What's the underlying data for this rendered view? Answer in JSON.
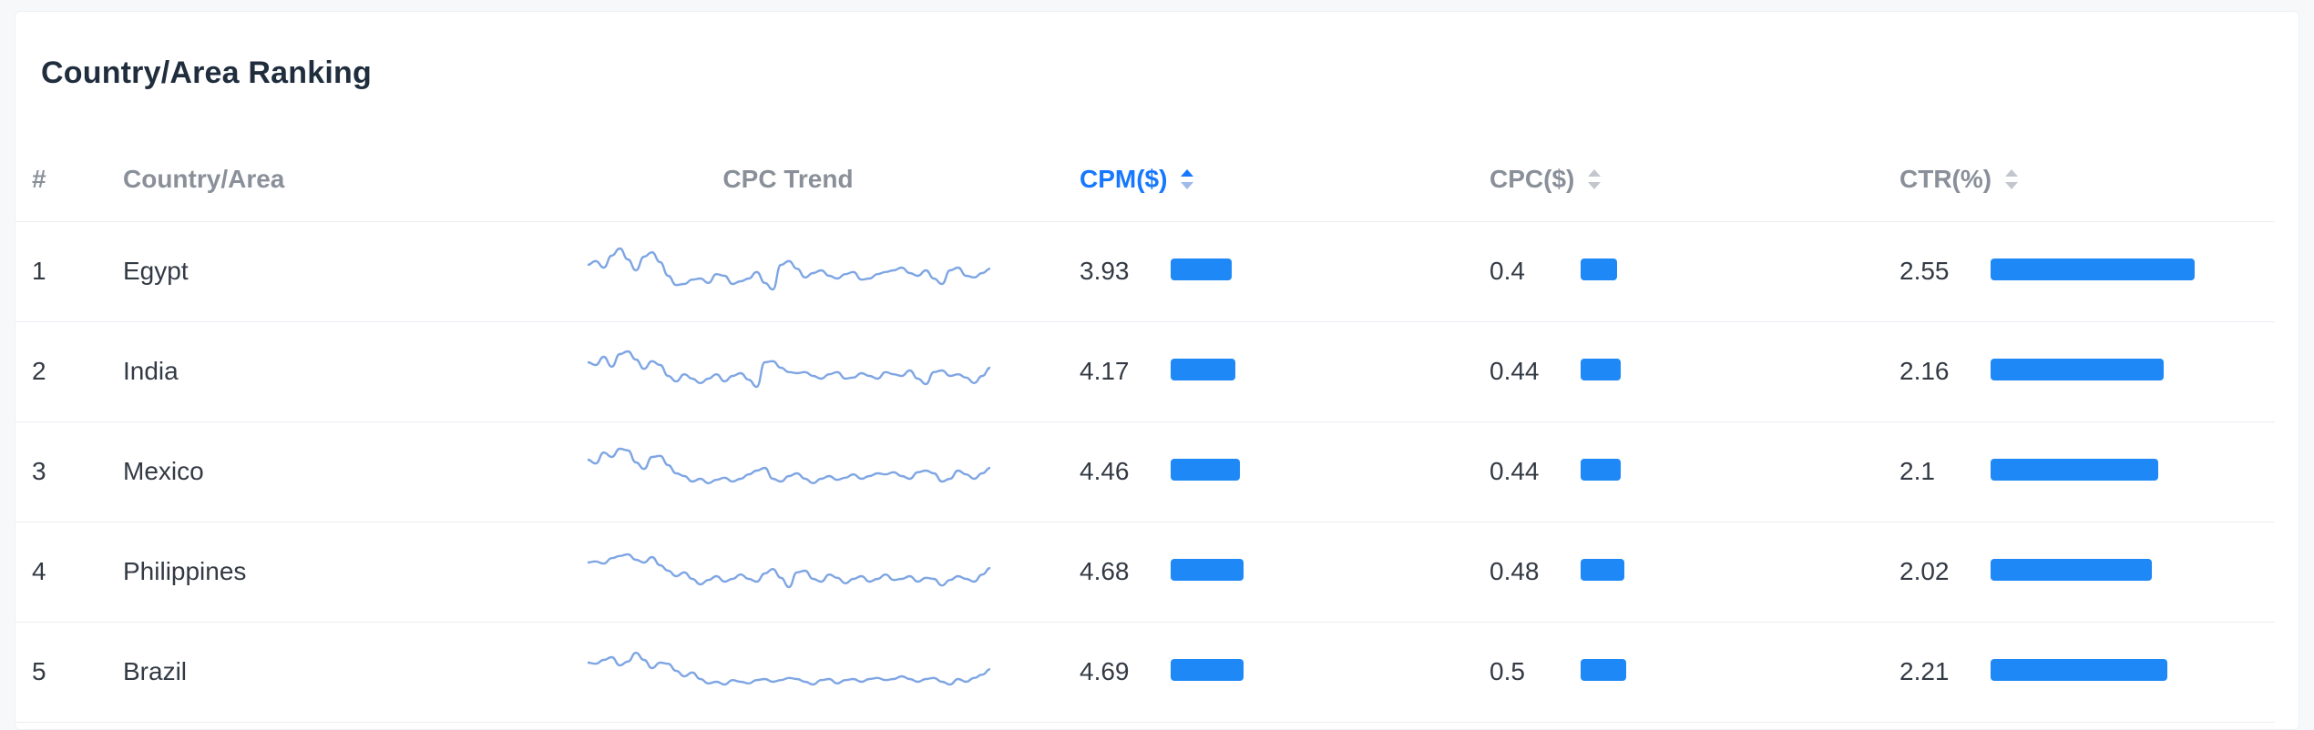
{
  "title": "Country/Area Ranking",
  "columns": {
    "rank": "#",
    "country": "Country/Area",
    "trend": "CPC Trend",
    "cpm": "CPM($)",
    "cpc": "CPC($)",
    "ctr": "CTR(%)"
  },
  "sort": {
    "active_column": "cpm",
    "direction": "asc"
  },
  "colors": {
    "accent": "#1677ff",
    "bar": "#1e88f7",
    "sparkline": "#7fa6e3"
  },
  "bar_scale_max": {
    "cpm": 4.69,
    "cpc": 0.5,
    "ctr": 2.55
  },
  "rows": [
    {
      "rank": "1",
      "country": "Egypt",
      "cpm": "3.93",
      "cpc": "0.4",
      "ctr": "2.55",
      "trend": [
        0.55,
        0.62,
        0.5,
        0.72,
        0.85,
        0.65,
        0.45,
        0.7,
        0.78,
        0.6,
        0.35,
        0.18,
        0.2,
        0.28,
        0.3,
        0.22,
        0.38,
        0.35,
        0.2,
        0.25,
        0.3,
        0.42,
        0.22,
        0.1,
        0.55,
        0.62,
        0.48,
        0.32,
        0.4,
        0.45,
        0.35,
        0.3,
        0.38,
        0.42,
        0.28,
        0.3,
        0.38,
        0.42,
        0.45,
        0.5,
        0.4,
        0.35,
        0.45,
        0.3,
        0.2,
        0.45,
        0.5,
        0.35,
        0.32,
        0.4,
        0.48
      ]
    },
    {
      "rank": "2",
      "country": "India",
      "cpm": "4.17",
      "cpc": "0.44",
      "ctr": "2.16",
      "trend": [
        0.6,
        0.55,
        0.7,
        0.52,
        0.75,
        0.8,
        0.65,
        0.48,
        0.62,
        0.55,
        0.35,
        0.25,
        0.38,
        0.3,
        0.22,
        0.3,
        0.38,
        0.25,
        0.35,
        0.4,
        0.28,
        0.15,
        0.6,
        0.62,
        0.5,
        0.42,
        0.4,
        0.42,
        0.35,
        0.3,
        0.38,
        0.42,
        0.3,
        0.32,
        0.4,
        0.35,
        0.3,
        0.42,
        0.38,
        0.35,
        0.45,
        0.3,
        0.2,
        0.42,
        0.45,
        0.35,
        0.38,
        0.32,
        0.22,
        0.35,
        0.5
      ]
    },
    {
      "rank": "3",
      "country": "Mexico",
      "cpm": "4.46",
      "cpc": "0.44",
      "ctr": "2.1",
      "trend": [
        0.65,
        0.58,
        0.78,
        0.7,
        0.85,
        0.82,
        0.6,
        0.48,
        0.7,
        0.72,
        0.55,
        0.4,
        0.35,
        0.25,
        0.3,
        0.22,
        0.28,
        0.32,
        0.25,
        0.3,
        0.38,
        0.45,
        0.5,
        0.3,
        0.25,
        0.35,
        0.4,
        0.3,
        0.22,
        0.3,
        0.35,
        0.28,
        0.32,
        0.38,
        0.3,
        0.35,
        0.4,
        0.38,
        0.42,
        0.35,
        0.3,
        0.42,
        0.45,
        0.4,
        0.25,
        0.3,
        0.45,
        0.38,
        0.3,
        0.4,
        0.5
      ]
    },
    {
      "rank": "4",
      "country": "Philippines",
      "cpm": "4.68",
      "cpc": "0.48",
      "ctr": "2.02",
      "trend": [
        0.6,
        0.62,
        0.58,
        0.68,
        0.72,
        0.75,
        0.65,
        0.6,
        0.7,
        0.55,
        0.45,
        0.35,
        0.42,
        0.3,
        0.2,
        0.28,
        0.35,
        0.25,
        0.3,
        0.38,
        0.3,
        0.25,
        0.4,
        0.48,
        0.32,
        0.15,
        0.42,
        0.45,
        0.3,
        0.25,
        0.38,
        0.32,
        0.22,
        0.3,
        0.35,
        0.25,
        0.3,
        0.38,
        0.28,
        0.3,
        0.35,
        0.25,
        0.32,
        0.3,
        0.18,
        0.28,
        0.35,
        0.3,
        0.25,
        0.38,
        0.5
      ]
    },
    {
      "rank": "5",
      "country": "Brazil",
      "cpm": "4.69",
      "cpc": "0.5",
      "ctr": "2.21",
      "trend": [
        0.6,
        0.58,
        0.65,
        0.7,
        0.55,
        0.62,
        0.78,
        0.65,
        0.5,
        0.6,
        0.58,
        0.45,
        0.35,
        0.42,
        0.3,
        0.22,
        0.25,
        0.2,
        0.28,
        0.25,
        0.22,
        0.28,
        0.3,
        0.25,
        0.28,
        0.32,
        0.3,
        0.25,
        0.2,
        0.28,
        0.3,
        0.22,
        0.28,
        0.3,
        0.25,
        0.3,
        0.32,
        0.28,
        0.3,
        0.35,
        0.3,
        0.25,
        0.3,
        0.32,
        0.25,
        0.2,
        0.3,
        0.25,
        0.32,
        0.38,
        0.48
      ]
    }
  ]
}
